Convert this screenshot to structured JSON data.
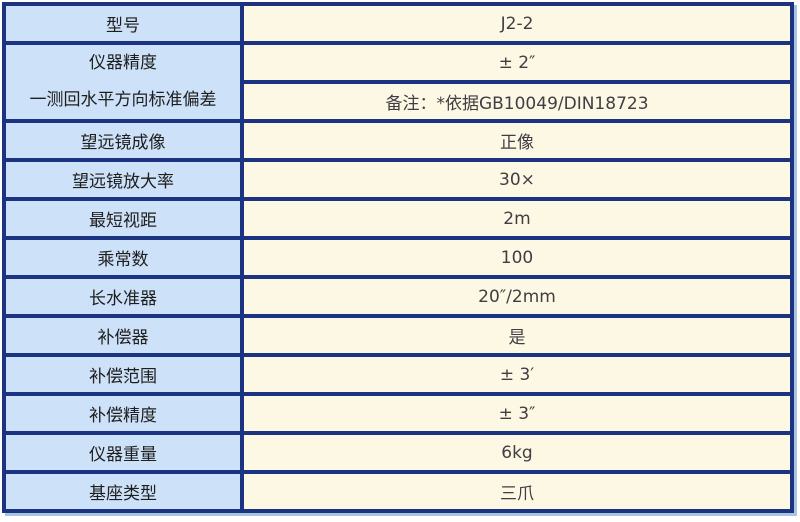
{
  "colors": {
    "border": "#1b3380",
    "label_bg": "#cde1f8",
    "value_bg": "#fdf8e3",
    "label_text": "#1e1e1e",
    "value_text": "#403d44",
    "outer_shadow": "#a9c3e2"
  },
  "table": {
    "rows": [
      {
        "label": "型号",
        "value": "J2-2"
      },
      {
        "label_line1": "仪器精度",
        "label_line2": "一测回水平方向标准偏差",
        "value_top": "± 2″",
        "value_bottom": "备注：*依据GB10049/DIN18723"
      },
      {
        "label": "望远镜成像",
        "value": "正像"
      },
      {
        "label": "望远镜放大率",
        "value": "30×"
      },
      {
        "label": "最短视距",
        "value": "2m"
      },
      {
        "label": "乘常数",
        "value": "100"
      },
      {
        "label": "长水准器",
        "value": "20″/2mm"
      },
      {
        "label": "补偿器",
        "value": "是"
      },
      {
        "label": "补偿范围",
        "value": "± 3′"
      },
      {
        "label": "补偿精度",
        "value": "± 3″"
      },
      {
        "label": "仪器重量",
        "value": "6kg"
      },
      {
        "label": "基座类型",
        "value": "三爪"
      }
    ]
  }
}
